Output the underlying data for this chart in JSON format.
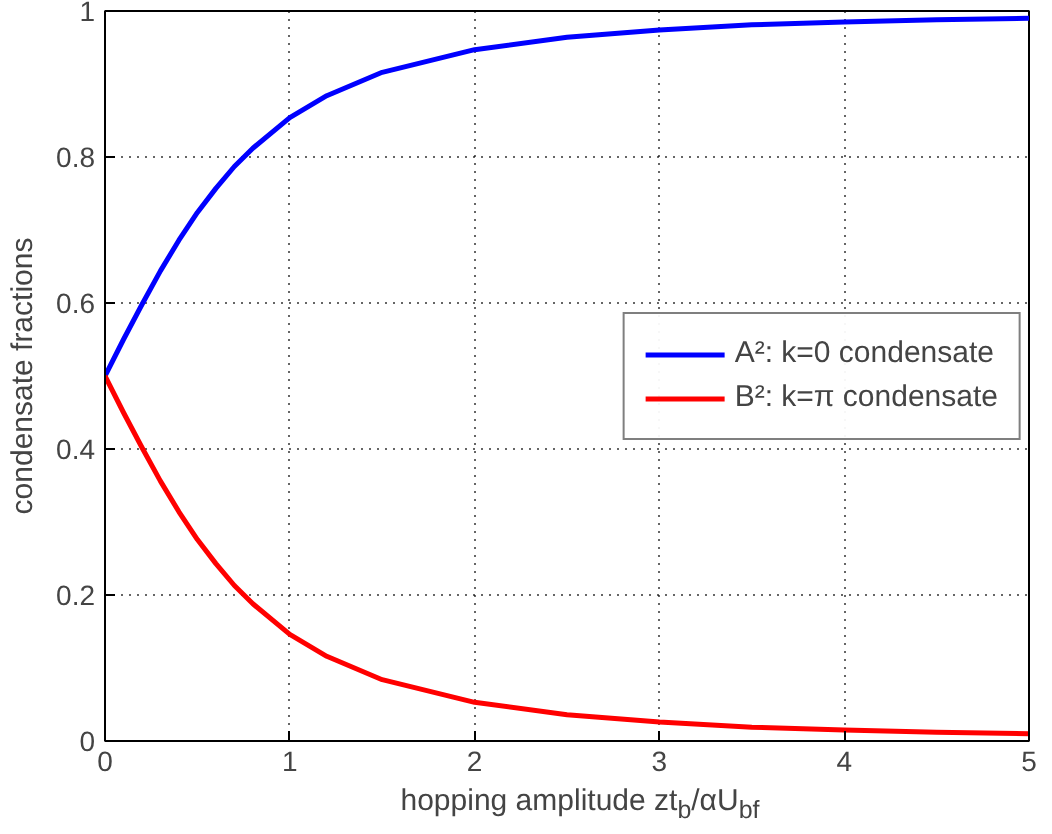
{
  "chart_data": {
    "type": "line",
    "xlabel": "hopping amplitude zt$_{b}$/αU$_{bf}$",
    "ylabel": "condensate fractions",
    "xlim": [
      0,
      5
    ],
    "ylim": [
      0,
      1
    ],
    "xticks": [
      0,
      1,
      2,
      3,
      4,
      5
    ],
    "yticks": [
      0,
      0.2,
      0.4,
      0.6,
      0.8,
      1
    ],
    "grid": true,
    "legend": "right",
    "line_style": "solid",
    "series": [
      {
        "name": "A²: k=0 condensate",
        "color": "#0000ff",
        "x": [
          0,
          0.1,
          0.2,
          0.3,
          0.4,
          0.5,
          0.6,
          0.7,
          0.8,
          1,
          1.2,
          1.5,
          2,
          2.5,
          3,
          3.5,
          4,
          4.5,
          5
        ],
        "values": [
          0.5,
          0.55,
          0.598,
          0.644,
          0.686,
          0.724,
          0.757,
          0.787,
          0.812,
          0.854,
          0.884,
          0.916,
          0.947,
          0.964,
          0.974,
          0.981,
          0.985,
          0.988,
          0.99
        ]
      },
      {
        "name": "B²: k=π condensate",
        "color": "#ff0000",
        "x": [
          0,
          0.1,
          0.2,
          0.3,
          0.4,
          0.5,
          0.6,
          0.7,
          0.8,
          1,
          1.2,
          1.5,
          2,
          2.5,
          3,
          3.5,
          4,
          4.5,
          5
        ],
        "values": [
          0.5,
          0.45,
          0.402,
          0.356,
          0.314,
          0.276,
          0.243,
          0.213,
          0.188,
          0.146,
          0.116,
          0.084,
          0.053,
          0.036,
          0.026,
          0.019,
          0.015,
          0.012,
          0.01
        ]
      }
    ]
  }
}
